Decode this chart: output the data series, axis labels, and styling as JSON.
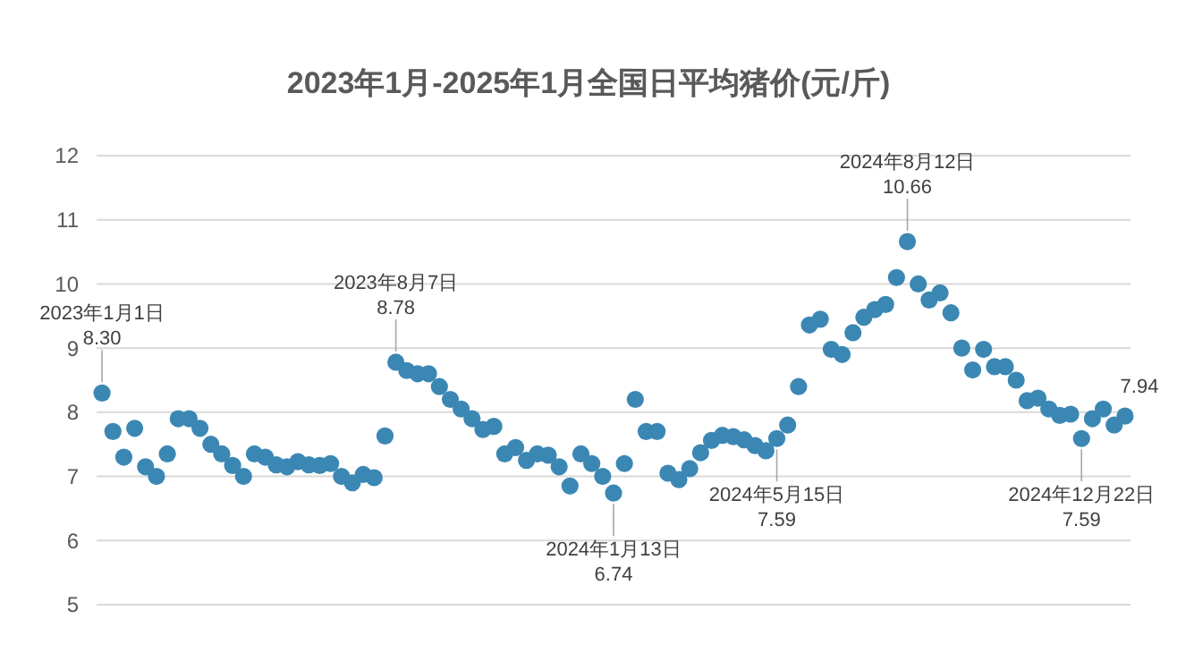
{
  "chart_data": {
    "type": "scatter",
    "title": "2023年1月-2025年1月全国日平均猪价(元/斤)",
    "categories": [
      null,
      null,
      null,
      null,
      null,
      null,
      null,
      null,
      null,
      null,
      null,
      null,
      null,
      null,
      null,
      null,
      null,
      null,
      null,
      null,
      null,
      null,
      null,
      null,
      null,
      null,
      null,
      null,
      null,
      null,
      null,
      null,
      null,
      null,
      null,
      null,
      null,
      null,
      null,
      null,
      null,
      null,
      null,
      null,
      null,
      null,
      null,
      null,
      null,
      null,
      null,
      null,
      null,
      null,
      null,
      null,
      null,
      null,
      null,
      null,
      null,
      null,
      null,
      null,
      null,
      null,
      null,
      null,
      null,
      null,
      null,
      null,
      null,
      null,
      null,
      null,
      null,
      null,
      null,
      null,
      null,
      null,
      null,
      null,
      null,
      null,
      null,
      null,
      null,
      null,
      null,
      null,
      null,
      null,
      null
    ],
    "series": [
      {
        "color": "#3b87b4",
        "values": [
          8.3,
          7.7,
          7.3,
          7.75,
          7.15,
          7.0,
          7.35,
          7.9,
          7.9,
          7.75,
          7.5,
          7.35,
          7.17,
          7.0,
          7.35,
          7.3,
          7.18,
          7.15,
          7.23,
          7.18,
          7.17,
          7.2,
          7.0,
          6.9,
          7.03,
          6.98,
          7.63,
          8.78,
          8.65,
          8.6,
          8.6,
          8.4,
          8.2,
          8.05,
          7.9,
          7.73,
          7.78,
          7.35,
          7.45,
          7.25,
          7.35,
          7.33,
          7.15,
          6.85,
          7.35,
          7.2,
          7.0,
          6.74,
          7.2,
          8.2,
          7.7,
          7.7,
          7.05,
          6.95,
          7.12,
          7.37,
          7.56,
          7.64,
          7.62,
          7.57,
          7.48,
          7.4,
          7.59,
          7.8,
          8.4,
          9.36,
          9.45,
          8.98,
          8.9,
          9.24,
          9.48,
          9.6,
          9.68,
          10.1,
          10.66,
          10.0,
          9.75,
          9.86,
          9.55,
          9.0,
          8.66,
          8.98,
          8.71,
          8.71,
          8.5,
          8.18,
          8.22,
          8.05,
          7.95,
          7.97,
          7.59,
          7.9,
          8.05,
          7.8,
          7.94
        ],
        "value_labels": [
          "2023年1月1日\n8.30",
          null,
          null,
          null,
          null,
          null,
          null,
          null,
          null,
          null,
          null,
          null,
          null,
          null,
          null,
          null,
          null,
          null,
          null,
          null,
          null,
          null,
          null,
          null,
          null,
          null,
          null,
          "2023年8月7日\n8.78",
          null,
          null,
          null,
          null,
          null,
          null,
          null,
          null,
          null,
          null,
          null,
          null,
          null,
          null,
          null,
          null,
          null,
          null,
          null,
          "2024年1月13日\n6.74",
          null,
          null,
          null,
          null,
          null,
          null,
          null,
          null,
          null,
          null,
          null,
          null,
          null,
          null,
          "2024年5月15日\n7.59",
          null,
          null,
          null,
          null,
          null,
          null,
          null,
          null,
          null,
          null,
          null,
          "2024年8月12日\n10.66",
          null,
          null,
          null,
          null,
          null,
          null,
          null,
          null,
          null,
          null,
          null,
          null,
          null,
          null,
          null,
          "2024年12月22日\n7.59",
          null,
          null,
          null,
          "7.94"
        ]
      }
    ],
    "ylim": [
      5,
      12
    ],
    "yticks": [
      5,
      6,
      7,
      8,
      9,
      10,
      11,
      12
    ],
    "grid": "y",
    "tick_labels": "y",
    "marker": "circle"
  }
}
